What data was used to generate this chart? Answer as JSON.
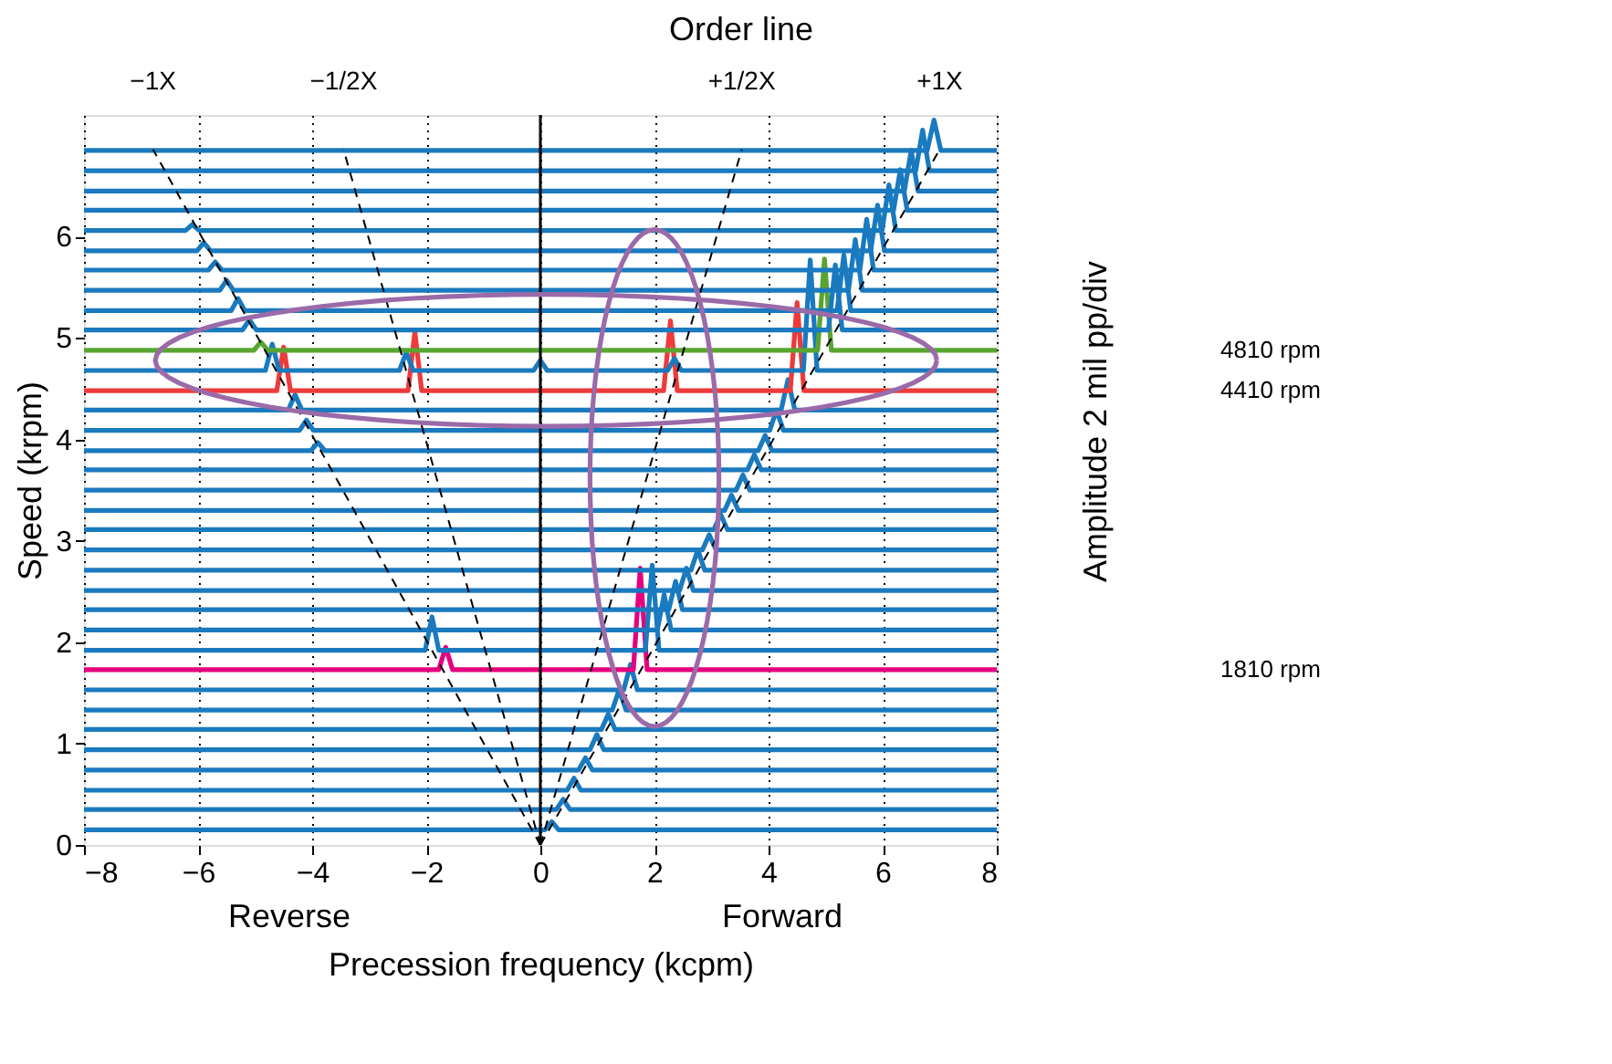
{
  "chart_data": {
    "type": "line",
    "xlabel": "Precession frequency (kcpm)",
    "ylabel": "Speed (krpm)",
    "y2label": "Amplitude 2 mil pp/div",
    "xlim": [
      -8,
      8
    ],
    "xticks": [
      -8,
      -6,
      -4,
      -2,
      0,
      2,
      4,
      6,
      8
    ],
    "ylim": [
      0,
      7.2
    ],
    "yticks": [
      0,
      1,
      2,
      3,
      4,
      5,
      6
    ],
    "grid": "x",
    "ref_lines": [
      {
        "axis": "x",
        "value": 0,
        "color": "#000000"
      }
    ],
    "annotations": [
      "Order line",
      {
        "text": "−1X",
        "x": -6.79,
        "y": 6.86
      },
      {
        "text": "−1/2X",
        "x": -3.45,
        "y": 6.86
      },
      {
        "text": "+1/2X",
        "x": 3.53,
        "y": 6.86
      },
      {
        "text": "+1X",
        "x": 7.0,
        "y": 6.86
      },
      "Reverse",
      "Forward",
      "4810 rpm",
      "4410 rpm",
      "1810 rpm"
    ],
    "series": [
      {
        "type": "line",
        "color": "#1a7abf",
        "x": [
          -8,
          0.08,
          0.2,
          0.32,
          8
        ],
        "values": [
          0.15,
          0.15,
          0.23,
          0.15,
          0.15
        ]
      },
      {
        "type": "line",
        "color": "#1a7abf",
        "x": [
          -8,
          0.28,
          0.4,
          0.52,
          8
        ],
        "values": [
          0.35,
          0.35,
          0.45,
          0.35,
          0.35
        ]
      },
      {
        "type": "line",
        "color": "#1a7abf",
        "x": [
          -8,
          0.47,
          0.59,
          0.71,
          8
        ],
        "values": [
          0.54,
          0.54,
          0.66,
          0.54,
          0.54
        ]
      },
      {
        "type": "line",
        "color": "#1a7abf",
        "x": [
          -8,
          0.67,
          0.79,
          0.91,
          8
        ],
        "values": [
          0.74,
          0.74,
          0.86,
          0.74,
          0.74
        ]
      },
      {
        "type": "line",
        "color": "#1a7abf",
        "x": [
          -8,
          0.87,
          0.99,
          1.11,
          8
        ],
        "values": [
          0.94,
          0.94,
          1.09,
          0.94,
          0.94
        ]
      },
      {
        "type": "line",
        "color": "#1a7abf",
        "x": [
          -8,
          1.07,
          1.19,
          1.31,
          8
        ],
        "values": [
          1.14,
          1.14,
          1.29,
          1.14,
          1.14
        ]
      },
      {
        "type": "line",
        "color": "#1a7abf",
        "x": [
          -8,
          1.26,
          1.38,
          1.5,
          8
        ],
        "values": [
          1.33,
          1.33,
          1.53,
          1.33,
          1.33
        ]
      },
      {
        "type": "line",
        "color": "#1a7abf",
        "x": [
          -8,
          1.46,
          1.58,
          1.7,
          8
        ],
        "values": [
          1.53,
          1.53,
          1.78,
          1.53,
          1.53
        ]
      },
      {
        "type": "line",
        "color": "#e6007e",
        "x": [
          -8,
          -1.78,
          -1.66,
          -1.54,
          1.63,
          1.75,
          1.87,
          8
        ],
        "values": [
          1.73,
          1.73,
          1.95,
          1.73,
          1.73,
          2.73,
          1.73,
          1.73
        ]
      },
      {
        "type": "line",
        "color": "#1a7abf",
        "x": [
          -8,
          -2.02,
          -1.9,
          -1.78,
          1.84,
          1.96,
          2.08,
          8
        ],
        "values": [
          1.92,
          1.92,
          2.25,
          1.92,
          1.92,
          2.76,
          1.92,
          1.92
        ]
      },
      {
        "type": "line",
        "color": "#1a7abf",
        "x": [
          -8,
          2.05,
          2.17,
          2.29,
          8
        ],
        "values": [
          2.12,
          2.12,
          2.47,
          2.12,
          2.12
        ]
      },
      {
        "type": "line",
        "color": "#1a7abf",
        "x": [
          -8,
          2.25,
          2.37,
          2.49,
          8
        ],
        "values": [
          2.32,
          2.32,
          2.6,
          2.32,
          2.32
        ]
      },
      {
        "type": "line",
        "color": "#1a7abf",
        "x": [
          -8,
          2.44,
          2.56,
          2.68,
          8
        ],
        "values": [
          2.51,
          2.51,
          2.73,
          2.51,
          2.51
        ]
      },
      {
        "type": "line",
        "color": "#1a7abf",
        "x": [
          -8,
          2.64,
          2.76,
          2.88,
          8
        ],
        "values": [
          2.71,
          2.71,
          2.91,
          2.71,
          2.71
        ]
      },
      {
        "type": "line",
        "color": "#1a7abf",
        "x": [
          -8,
          2.84,
          2.96,
          3.08,
          8
        ],
        "values": [
          2.91,
          2.91,
          3.06,
          2.91,
          2.91
        ]
      },
      {
        "type": "line",
        "color": "#1a7abf",
        "x": [
          -8,
          3.04,
          3.16,
          3.28,
          8
        ],
        "values": [
          3.11,
          3.11,
          3.26,
          3.11,
          3.11
        ]
      },
      {
        "type": "line",
        "color": "#1a7abf",
        "x": [
          -8,
          3.23,
          3.35,
          3.47,
          8
        ],
        "values": [
          3.3,
          3.3,
          3.45,
          3.3,
          3.3
        ]
      },
      {
        "type": "line",
        "color": "#1a7abf",
        "x": [
          -8,
          3.43,
          3.55,
          3.67,
          8
        ],
        "values": [
          3.5,
          3.5,
          3.65,
          3.5,
          3.5
        ]
      },
      {
        "type": "line",
        "color": "#1a7abf",
        "x": [
          -8,
          3.63,
          3.75,
          3.87,
          8
        ],
        "values": [
          3.7,
          3.7,
          3.85,
          3.7,
          3.7
        ]
      },
      {
        "type": "line",
        "color": "#1a7abf",
        "x": [
          -8,
          -4.02,
          -3.9,
          -3.78,
          3.82,
          3.94,
          4.06,
          8
        ],
        "values": [
          3.89,
          3.89,
          3.97,
          3.89,
          3.89,
          4.04,
          3.89,
          3.89
        ]
      },
      {
        "type": "line",
        "color": "#1a7abf",
        "x": [
          -8,
          -4.22,
          -4.1,
          -3.98,
          4.02,
          4.14,
          4.26,
          8
        ],
        "values": [
          4.09,
          4.09,
          4.19,
          4.09,
          4.09,
          4.29,
          4.09,
          4.09
        ]
      },
      {
        "type": "line",
        "color": "#1a7abf",
        "x": [
          -8,
          -4.42,
          -4.3,
          -4.18,
          4.22,
          4.34,
          4.46,
          8
        ],
        "values": [
          4.29,
          4.29,
          4.44,
          4.29,
          4.29,
          4.59,
          4.29,
          4.29
        ]
      },
      {
        "type": "line",
        "color": "#ee3a3a",
        "x": [
          -8,
          -4.62,
          -4.5,
          -4.38,
          -2.32,
          -2.2,
          -2.08,
          2.16,
          2.28,
          2.4,
          4.38,
          4.5,
          4.62,
          8
        ],
        "values": [
          4.48,
          4.48,
          4.91,
          4.48,
          4.48,
          5.06,
          4.48,
          4.48,
          5.17,
          4.48,
          4.48,
          5.35,
          4.48,
          4.48
        ]
      },
      {
        "type": "line",
        "color": "#1a7abf",
        "x": [
          -8,
          -4.82,
          -4.7,
          -4.58,
          -2.47,
          -2.35,
          -2.23,
          -0.12,
          0,
          0.12,
          2.23,
          2.35,
          2.47,
          4.61,
          4.73,
          4.85,
          8
        ],
        "values": [
          4.68,
          4.68,
          4.94,
          4.68,
          4.68,
          4.86,
          4.68,
          4.68,
          4.78,
          4.68,
          4.68,
          4.8,
          4.68,
          4.68,
          5.77,
          4.68,
          4.68
        ]
      },
      {
        "type": "line",
        "color": "#5aa532",
        "x": [
          -8,
          -5.02,
          -4.9,
          -4.78,
          4.86,
          4.98,
          5.1,
          8
        ],
        "values": [
          4.88,
          4.88,
          4.96,
          4.88,
          4.88,
          5.78,
          4.88,
          4.88
        ]
      },
      {
        "type": "line",
        "color": "#1a7abf",
        "x": [
          -8,
          -5.22,
          -5.1,
          -4.98,
          5.05,
          5.17,
          5.29,
          8
        ],
        "values": [
          5.08,
          5.08,
          5.18,
          5.08,
          5.08,
          5.72,
          5.08,
          5.08
        ]
      },
      {
        "type": "line",
        "color": "#1a7abf",
        "x": [
          -8,
          -5.42,
          -5.3,
          -5.18,
          5.2,
          5.32,
          5.44,
          8
        ],
        "values": [
          5.27,
          5.27,
          5.39,
          5.27,
          5.27,
          5.82,
          5.27,
          5.27
        ]
      },
      {
        "type": "line",
        "color": "#1a7abf",
        "x": [
          -8,
          -5.62,
          -5.5,
          -5.38,
          5.4,
          5.52,
          5.64,
          8
        ],
        "values": [
          5.47,
          5.47,
          5.57,
          5.47,
          5.47,
          5.97,
          5.47,
          5.47
        ]
      },
      {
        "type": "line",
        "color": "#1a7abf",
        "x": [
          -8,
          -5.82,
          -5.7,
          -5.58,
          5.6,
          5.72,
          5.84,
          8
        ],
        "values": [
          5.67,
          5.67,
          5.75,
          5.67,
          5.67,
          6.17,
          5.67,
          5.67
        ]
      },
      {
        "type": "line",
        "color": "#1a7abf",
        "x": [
          -8,
          -6.02,
          -5.9,
          -5.78,
          5.79,
          5.91,
          6.03,
          8
        ],
        "values": [
          5.86,
          5.86,
          5.94,
          5.86,
          5.86,
          6.31,
          5.86,
          5.86
        ]
      },
      {
        "type": "line",
        "color": "#1a7abf",
        "x": [
          -8,
          -6.22,
          -6.1,
          -5.98,
          5.99,
          6.11,
          6.23,
          8
        ],
        "values": [
          6.06,
          6.06,
          6.12,
          6.06,
          6.06,
          6.51,
          6.06,
          6.06
        ]
      },
      {
        "type": "line",
        "color": "#1a7abf",
        "x": [
          -8,
          6.19,
          6.31,
          6.43,
          8
        ],
        "values": [
          6.26,
          6.26,
          6.66,
          6.26,
          6.26
        ]
      },
      {
        "type": "line",
        "color": "#1a7abf",
        "x": [
          -8,
          6.38,
          6.5,
          6.62,
          8
        ],
        "values": [
          6.45,
          6.45,
          6.85,
          6.45,
          6.45
        ]
      },
      {
        "type": "line",
        "color": "#1a7abf",
        "x": [
          -8,
          6.58,
          6.7,
          6.82,
          8
        ],
        "values": [
          6.65,
          6.65,
          7.05,
          6.65,
          6.65
        ]
      },
      {
        "type": "line",
        "color": "#1a7abf",
        "x": [
          -8,
          6.78,
          6.9,
          7.02,
          8
        ],
        "values": [
          6.85,
          6.85,
          7.15,
          6.85,
          6.85
        ]
      },
      {
        "type": "line",
        "color": "#000000",
        "line_style": "dashed",
        "x": [
          0,
          -6.79
        ],
        "values": [
          0,
          6.86
        ]
      },
      {
        "type": "line",
        "color": "#000000",
        "line_style": "dashed",
        "x": [
          0,
          -3.45
        ],
        "values": [
          0,
          6.86
        ]
      },
      {
        "type": "line",
        "color": "#000000",
        "line_style": "dashed",
        "x": [
          0,
          3.53
        ],
        "values": [
          0,
          6.86
        ]
      },
      {
        "type": "line",
        "color": "#000000",
        "line_style": "dashed",
        "x": [
          0,
          7.0
        ],
        "values": [
          0,
          6.86
        ]
      }
    ]
  }
}
